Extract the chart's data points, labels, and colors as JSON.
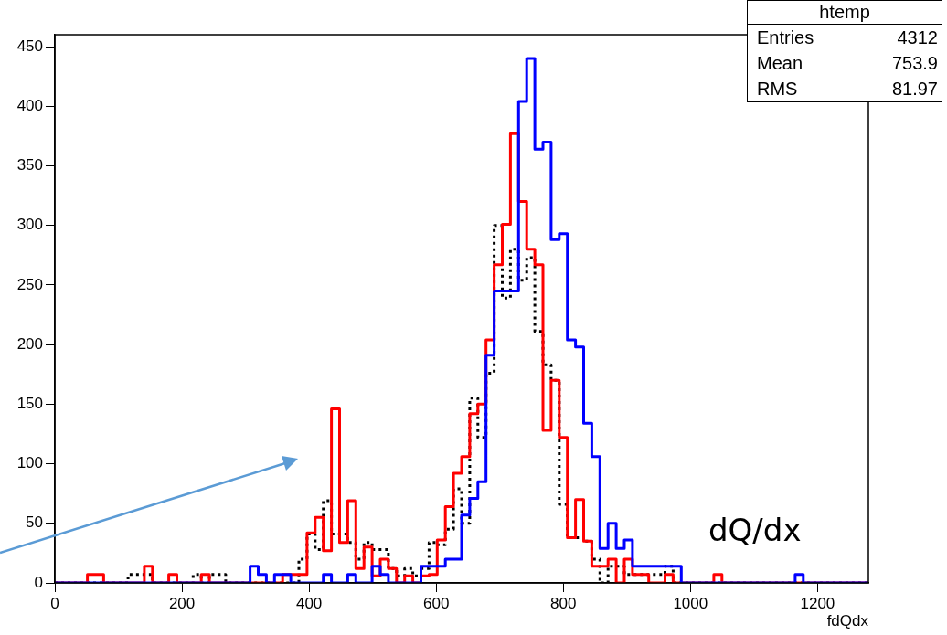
{
  "chart_data": {
    "type": "histogram",
    "xlabel": "fdQdx",
    "bins": [
      0,
      12.8,
      25.6,
      38.4,
      51.2,
      64,
      76.8,
      89.6,
      102.4,
      115.2,
      128,
      140.8,
      153.6,
      166.4,
      179.2,
      192,
      204.8,
      217.6,
      230.4,
      243.2,
      256,
      268.8,
      281.6,
      294.4,
      307.2,
      320,
      332.8,
      345.6,
      358.4,
      371.2,
      384,
      396.8,
      409.6,
      422.4,
      435.2,
      448,
      460.8,
      473.6,
      486.4,
      499.2,
      512,
      524.8,
      537.6,
      550.4,
      563.2,
      576,
      588.8,
      601.6,
      614.4,
      627.2,
      640,
      652.8,
      665.6,
      678.4,
      691.2,
      704,
      716.8,
      729.6,
      742.4,
      755.2,
      768,
      780.8,
      793.6,
      806.4,
      819.2,
      832,
      844.8,
      857.6,
      870.4,
      883.2,
      896,
      908.8,
      921.6,
      934.4,
      947.2,
      960,
      972.8,
      985.6,
      998.4,
      1011.2,
      1024,
      1036.8,
      1049.6,
      1062.4,
      1075.2,
      1088,
      1100.8,
      1113.6,
      1126.4,
      1139.2,
      1152,
      1164.8,
      1177.6,
      1190.4,
      1203.2,
      1216,
      1228.8,
      1241.6,
      1254.4,
      1267.2,
      1280
    ],
    "series": [
      {
        "color": "#0000ff",
        "line_style": "solid",
        "values": [
          0,
          0,
          0,
          0,
          0,
          0,
          0,
          0,
          0,
          0,
          0,
          0,
          0,
          0,
          0,
          0,
          0,
          0,
          0,
          0,
          0,
          0,
          0,
          0,
          14,
          7,
          0,
          7,
          7,
          0,
          0,
          0,
          0,
          7,
          0,
          0,
          7,
          0,
          0,
          14,
          7,
          0,
          0,
          0,
          0,
          14,
          14,
          14,
          20,
          20,
          57,
          71,
          85,
          191,
          245,
          245,
          245,
          404,
          440,
          364,
          370,
          288,
          293,
          204,
          198,
          134,
          106,
          29,
          50,
          29,
          36,
          14,
          14,
          14,
          14,
          14,
          14,
          0,
          0,
          0,
          0,
          0,
          0,
          0,
          0,
          0,
          0,
          0,
          0,
          0,
          0,
          7,
          0,
          0,
          0,
          0,
          0,
          0,
          0,
          0
        ]
      },
      {
        "color": "#ff0000",
        "line_style": "solid",
        "values": [
          0,
          0,
          0,
          0,
          7,
          7,
          0,
          0,
          0,
          0,
          0,
          14,
          0,
          0,
          7,
          0,
          0,
          0,
          7,
          0,
          0,
          0,
          0,
          0,
          0,
          0,
          0,
          0,
          7,
          7,
          7,
          42,
          55,
          27,
          146,
          34,
          69,
          12,
          30,
          6,
          20,
          12,
          0,
          6,
          0,
          6,
          7,
          36,
          64,
          92,
          106,
          142,
          150,
          204,
          267,
          301,
          377,
          320,
          280,
          267,
          128,
          170,
          122,
          38,
          70,
          35,
          14,
          14,
          20,
          0,
          20,
          7,
          7,
          0,
          0,
          7,
          0,
          0,
          0,
          0,
          0,
          7,
          0,
          0,
          0,
          0,
          0,
          0,
          0,
          0,
          0,
          0,
          0,
          0,
          0,
          0,
          0,
          0,
          0,
          0
        ]
      },
      {
        "color": "#000000",
        "line_style": "dotted",
        "values": [
          0,
          0,
          0,
          0,
          0,
          0,
          0,
          0,
          0,
          7,
          7,
          7,
          0,
          0,
          0,
          0,
          0,
          7,
          0,
          7,
          7,
          0,
          0,
          0,
          0,
          0,
          0,
          0,
          0,
          0,
          20,
          41,
          28,
          69,
          41,
          41,
          34,
          20,
          34,
          28,
          28,
          12,
          6,
          12,
          6,
          12,
          34,
          32,
          45,
          79,
          50,
          155,
          122,
          176,
          300,
          239,
          280,
          254,
          273,
          211,
          183,
          170,
          66,
          38,
          38,
          35,
          20,
          0,
          14,
          14,
          7,
          7,
          7,
          7,
          7,
          14,
          0,
          0,
          0,
          0,
          0,
          0,
          0,
          0,
          0,
          0,
          0,
          0,
          0,
          0,
          0,
          0,
          0,
          0,
          0,
          0,
          0,
          0,
          0,
          0
        ]
      }
    ],
    "xlim": [
      0,
      1280
    ],
    "xticks": [
      0,
      200,
      400,
      600,
      800,
      1000,
      1200
    ],
    "ylim": [
      0,
      460
    ],
    "yticks": [
      0,
      50,
      100,
      150,
      200,
      250,
      300,
      350,
      400,
      450
    ],
    "grid": false,
    "legend": false,
    "annotations": [
      "htemp",
      "Entries 4312",
      "Mean 753.9",
      "RMS 81.97",
      "dQ/dx"
    ]
  }
}
